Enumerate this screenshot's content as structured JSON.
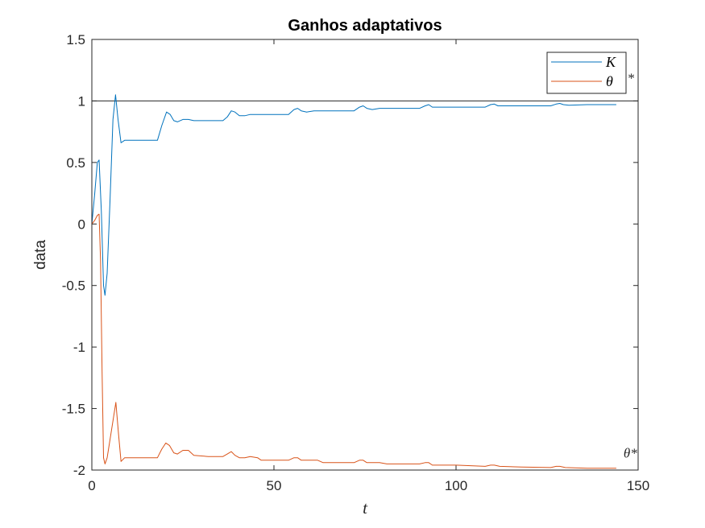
{
  "chart_data": {
    "type": "line",
    "title": "Ganhos adaptativos",
    "xlabel": "t",
    "ylabel": "data",
    "xlim": [
      0,
      150
    ],
    "ylim": [
      -2,
      1.5
    ],
    "xticks": [
      0,
      50,
      100,
      150
    ],
    "yticks": [
      1.5,
      1,
      0.5,
      0,
      -0.5,
      -1,
      -1.5,
      -2
    ],
    "xtick_labels": [
      "0",
      "50",
      "100",
      "150"
    ],
    "ytick_labels": [
      "1.5",
      "1",
      "0.5",
      "0",
      "-0.5",
      "-1",
      "-1.5",
      "-2"
    ],
    "grid": false,
    "legend_position": "top-right",
    "reference_lines": [
      {
        "y": 1,
        "color": "#262626"
      }
    ],
    "annotations": [
      {
        "text": "*",
        "x": 147,
        "y": 1.15
      },
      {
        "text": "θ*",
        "x": 146,
        "y": -1.9
      }
    ],
    "series": [
      {
        "name": "K",
        "color": "#0072BD",
        "points": [
          [
            0,
            0.0
          ],
          [
            0.8,
            0.25
          ],
          [
            1.5,
            0.5
          ],
          [
            2.0,
            0.52
          ],
          [
            2.6,
            0.1
          ],
          [
            3.2,
            -0.5
          ],
          [
            3.6,
            -0.58
          ],
          [
            4.2,
            -0.4
          ],
          [
            5.0,
            0.2
          ],
          [
            5.8,
            0.85
          ],
          [
            6.5,
            1.05
          ],
          [
            7.2,
            0.85
          ],
          [
            8.0,
            0.66
          ],
          [
            9.0,
            0.68
          ],
          [
            12,
            0.68
          ],
          [
            15,
            0.68
          ],
          [
            18,
            0.68
          ],
          [
            19.2,
            0.8
          ],
          [
            20.5,
            0.91
          ],
          [
            21.5,
            0.89
          ],
          [
            22.5,
            0.84
          ],
          [
            23.5,
            0.83
          ],
          [
            25,
            0.85
          ],
          [
            26.5,
            0.85
          ],
          [
            28,
            0.84
          ],
          [
            32,
            0.84
          ],
          [
            36,
            0.84
          ],
          [
            37.2,
            0.87
          ],
          [
            38.3,
            0.92
          ],
          [
            39.3,
            0.91
          ],
          [
            40.5,
            0.88
          ],
          [
            42,
            0.88
          ],
          [
            43.5,
            0.89
          ],
          [
            48,
            0.89
          ],
          [
            54,
            0.89
          ],
          [
            55.5,
            0.93
          ],
          [
            56.5,
            0.94
          ],
          [
            57.5,
            0.92
          ],
          [
            59,
            0.91
          ],
          [
            61,
            0.92
          ],
          [
            66,
            0.92
          ],
          [
            72,
            0.92
          ],
          [
            73.5,
            0.95
          ],
          [
            74.5,
            0.96
          ],
          [
            75.5,
            0.94
          ],
          [
            77,
            0.93
          ],
          [
            79,
            0.94
          ],
          [
            84,
            0.94
          ],
          [
            90,
            0.94
          ],
          [
            91.5,
            0.96
          ],
          [
            92.5,
            0.97
          ],
          [
            93.5,
            0.95
          ],
          [
            95,
            0.95
          ],
          [
            100,
            0.95
          ],
          [
            108,
            0.95
          ],
          [
            109.5,
            0.97
          ],
          [
            110.5,
            0.975
          ],
          [
            111.5,
            0.96
          ],
          [
            113,
            0.96
          ],
          [
            120,
            0.96
          ],
          [
            126,
            0.96
          ],
          [
            127.5,
            0.975
          ],
          [
            128.5,
            0.98
          ],
          [
            129.5,
            0.97
          ],
          [
            131,
            0.965
          ],
          [
            136,
            0.97
          ],
          [
            144,
            0.97
          ]
        ]
      },
      {
        "name": "θ",
        "color": "#D95319",
        "points": [
          [
            0,
            0.0
          ],
          [
            0.8,
            0.03
          ],
          [
            1.5,
            0.07
          ],
          [
            2.0,
            0.08
          ],
          [
            2.4,
            -0.3
          ],
          [
            2.8,
            -1.2
          ],
          [
            3.2,
            -1.9
          ],
          [
            3.6,
            -1.95
          ],
          [
            4.2,
            -1.9
          ],
          [
            5.0,
            -1.75
          ],
          [
            5.8,
            -1.6
          ],
          [
            6.6,
            -1.45
          ],
          [
            7.3,
            -1.7
          ],
          [
            8.0,
            -1.93
          ],
          [
            9.0,
            -1.9
          ],
          [
            12,
            -1.9
          ],
          [
            15,
            -1.9
          ],
          [
            18,
            -1.9
          ],
          [
            19.2,
            -1.83
          ],
          [
            20.3,
            -1.78
          ],
          [
            21.3,
            -1.8
          ],
          [
            22.5,
            -1.86
          ],
          [
            23.5,
            -1.87
          ],
          [
            25,
            -1.84
          ],
          [
            26.5,
            -1.84
          ],
          [
            28,
            -1.88
          ],
          [
            32,
            -1.89
          ],
          [
            36,
            -1.89
          ],
          [
            37.2,
            -1.87
          ],
          [
            38.3,
            -1.85
          ],
          [
            39.3,
            -1.88
          ],
          [
            40.5,
            -1.9
          ],
          [
            42,
            -1.9
          ],
          [
            43.5,
            -1.89
          ],
          [
            45.5,
            -1.9
          ],
          [
            46.5,
            -1.92
          ],
          [
            54,
            -1.92
          ],
          [
            55.5,
            -1.9
          ],
          [
            56.5,
            -1.9
          ],
          [
            57.5,
            -1.92
          ],
          [
            60,
            -1.92
          ],
          [
            62,
            -1.92
          ],
          [
            63.5,
            -1.94
          ],
          [
            72,
            -1.94
          ],
          [
            73.5,
            -1.92
          ],
          [
            74.5,
            -1.92
          ],
          [
            75.5,
            -1.94
          ],
          [
            79,
            -1.94
          ],
          [
            81,
            -1.95
          ],
          [
            90,
            -1.95
          ],
          [
            91.5,
            -1.94
          ],
          [
            92.5,
            -1.94
          ],
          [
            93.5,
            -1.96
          ],
          [
            100,
            -1.96
          ],
          [
            108,
            -1.97
          ],
          [
            109.5,
            -1.96
          ],
          [
            110.5,
            -1.96
          ],
          [
            112,
            -1.97
          ],
          [
            118,
            -1.975
          ],
          [
            126,
            -1.98
          ],
          [
            127.5,
            -1.97
          ],
          [
            128.5,
            -1.97
          ],
          [
            130,
            -1.98
          ],
          [
            136,
            -1.985
          ],
          [
            144,
            -1.985
          ]
        ]
      }
    ]
  }
}
